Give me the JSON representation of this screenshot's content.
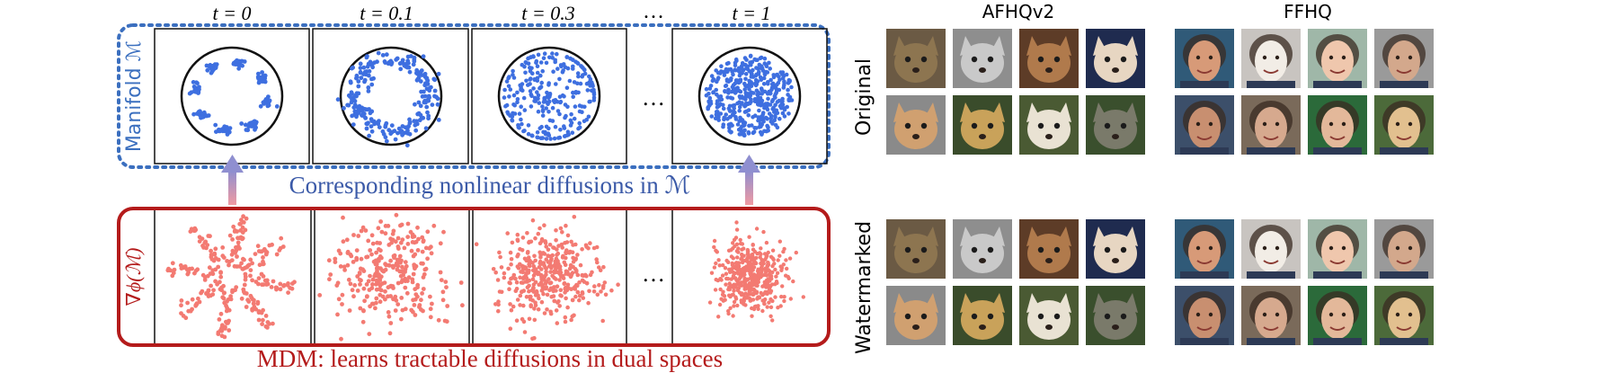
{
  "left": {
    "time_labels": [
      "t = 0",
      "t = 0.1",
      "t = 0.3",
      "…",
      "t = 1"
    ],
    "top_row_label": "Manifold ℳ",
    "top_caption": "Corresponding nonlinear diffusions in ℳ",
    "bottom_row_label": "∇ϕ(ℳ)",
    "bottom_caption": "MDM: learns tractable diffusions in dual spaces",
    "colors": {
      "manifold": "#3e6fe0",
      "dual": "#f37a72",
      "top_border": "#3b6fbf",
      "bottom_border": "#b41b1b",
      "arrow": "#9b8ec7"
    }
  },
  "right": {
    "datasets": [
      "AFHQv2",
      "FFHQ"
    ],
    "row_labels": [
      "Original",
      "Watermarked"
    ],
    "afhq_tiles": [
      {
        "name": "tabby-cat",
        "bg": "#6b5a44",
        "fg": "#8d7550"
      },
      {
        "name": "snow-leopard",
        "bg": "#8e8e8e",
        "fg": "#c9c9c9"
      },
      {
        "name": "orange-cat",
        "bg": "#5d3c27",
        "fg": "#b07a4c"
      },
      {
        "name": "chihuahua",
        "bg": "#1f2b4f",
        "fg": "#e7d6c2"
      },
      {
        "name": "dingo",
        "bg": "#8a8a8a",
        "fg": "#d0a070"
      },
      {
        "name": "cheetah",
        "bg": "#3a4c2b",
        "fg": "#c9a25a"
      },
      {
        "name": "white-dog",
        "bg": "#4a5a33",
        "fg": "#e9e2d3"
      },
      {
        "name": "grey-cat",
        "bg": "#3a4f2d",
        "fg": "#7a7a6a"
      }
    ],
    "ffhq_tiles": [
      {
        "name": "smiling-man",
        "bg": "#305a78",
        "fg": "#d79a78"
      },
      {
        "name": "white-hair-cosplay",
        "bg": "#c8c4c0",
        "fg": "#f2ede6"
      },
      {
        "name": "smiling-girl",
        "bg": "#9fb7a8",
        "fg": "#efc7ad"
      },
      {
        "name": "older-man",
        "bg": "#9a9a9a",
        "fg": "#d3a88c"
      },
      {
        "name": "bearded-man",
        "bg": "#3c4f6a",
        "fg": "#c88f70"
      },
      {
        "name": "woman-glasses",
        "bg": "#7a6a5a",
        "fg": "#d6a98e"
      },
      {
        "name": "green-hat-man",
        "bg": "#2b6a3a",
        "fg": "#e3b89a"
      },
      {
        "name": "blonde-woman",
        "bg": "#4c6a3a",
        "fg": "#e2c08f"
      }
    ]
  }
}
